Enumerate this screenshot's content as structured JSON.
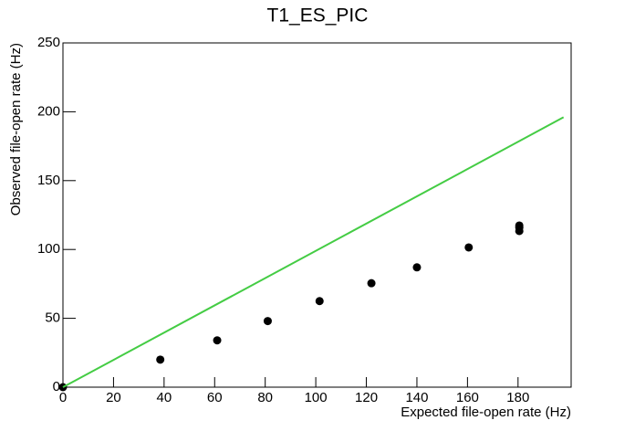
{
  "chart_data": {
    "type": "scatter",
    "title": "T1_ES_PIC",
    "x_label": "Expected file-open rate (Hz)",
    "y_label": "Observed file-open rate (Hz)",
    "xlim": [
      0,
      201
    ],
    "xticks": [
      0,
      20,
      40,
      60,
      80,
      100,
      120,
      140,
      160,
      180
    ],
    "ylim": [
      0,
      250
    ],
    "yticks": [
      0,
      50,
      100,
      150,
      200,
      250
    ],
    "series": [
      {
        "color": "#000000",
        "mode": "markers",
        "x": [
          0,
          38.5,
          61,
          81,
          101.5,
          122,
          140,
          160.5,
          180.5,
          180.5,
          180.5
        ],
        "values": [
          0,
          20,
          34,
          48,
          62.5,
          75.5,
          87,
          101.5,
          117.4,
          116,
          113.4
        ]
      },
      {
        "color": "#44cc44",
        "mode": "line",
        "x": [
          0,
          198
        ],
        "values": [
          0,
          196
        ]
      }
    ]
  }
}
